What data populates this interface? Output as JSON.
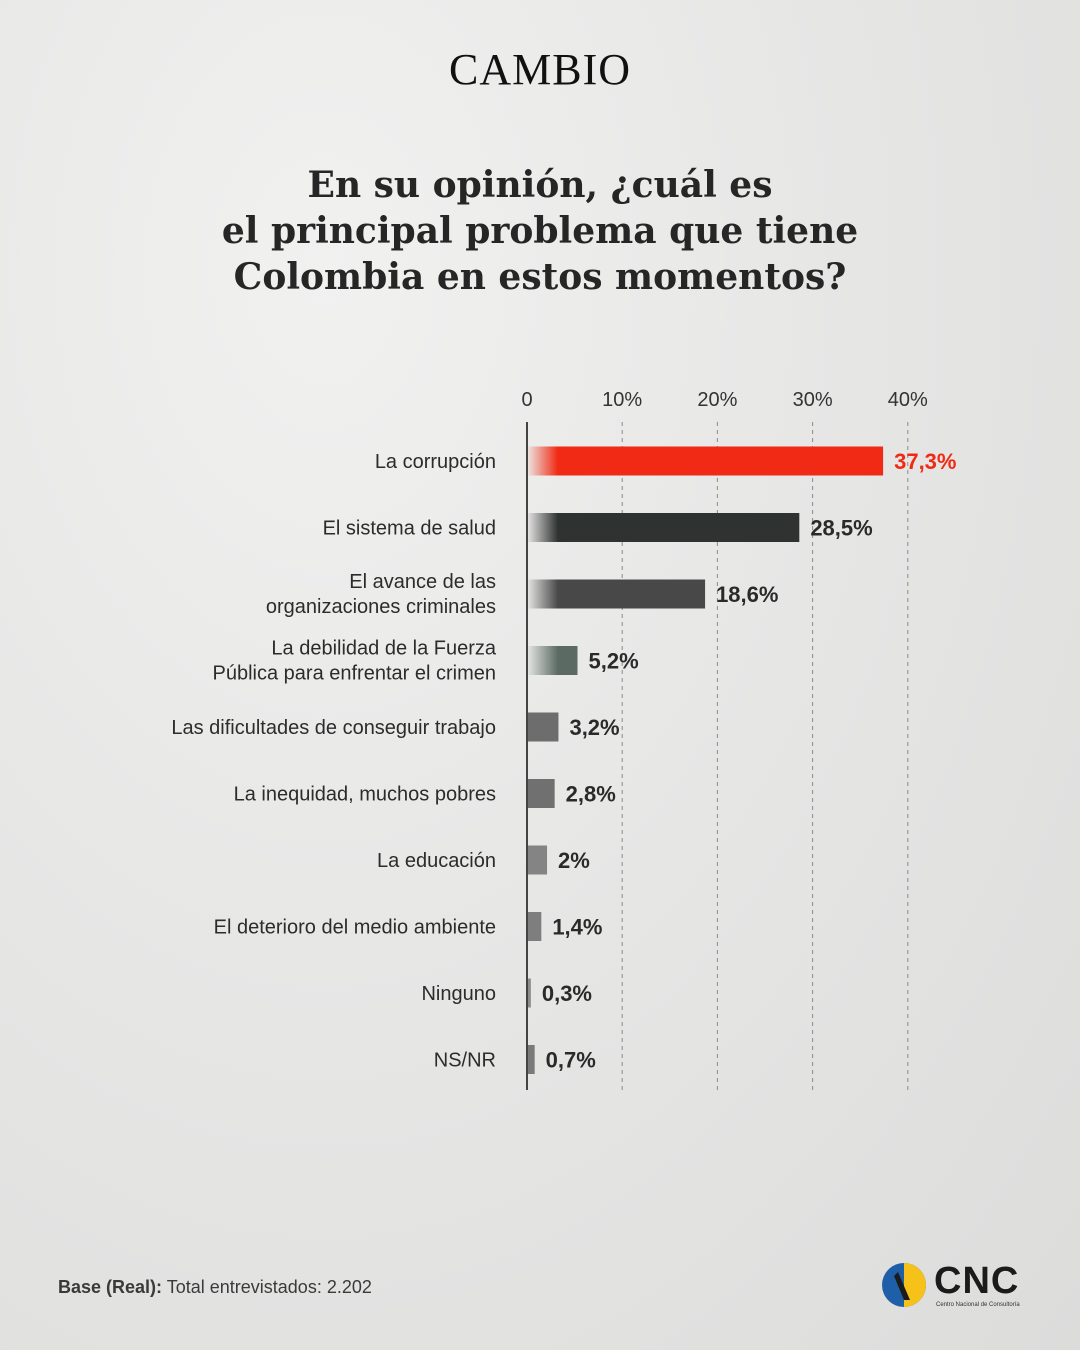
{
  "brand": "CAMBIO",
  "title_lines": [
    "En su opinión, ¿cuál es",
    "el principal problema que tiene",
    "Colombia en estos momentos?"
  ],
  "footer": {
    "label": "Base (Real):",
    "text": "Total entrevistados: 2.202"
  },
  "logo": {
    "name": "CNC",
    "subtitle": "Centro Nacional de Consultoría"
  },
  "colors": {
    "highlight": "#f02a14",
    "dark": "#2e3231",
    "gray": "#4a4a4a",
    "green_gray": "#5b6b63",
    "light_gray": "#7a7a7a",
    "grid": "#8a8a8a"
  },
  "chart_data": {
    "type": "bar",
    "orientation": "horizontal",
    "xlim": [
      0,
      40
    ],
    "ticks": [
      "0",
      "10%",
      "20%",
      "30%",
      "40%"
    ],
    "tick_values": [
      0,
      10,
      20,
      30,
      40
    ],
    "grid": true,
    "categories": [
      "La corrupción",
      "El sistema de salud",
      "El avance de las organizaciones criminales",
      "La debilidad de la Fuerza Pública para enfrentar el crimen",
      "Las dificultades de conseguir trabajo",
      "La inequidad, muchos pobres",
      "La educación",
      "El deterioro del medio ambiente",
      "Ninguno",
      "NS/NR"
    ],
    "category_lines": [
      [
        "La corrupción"
      ],
      [
        "El sistema de salud"
      ],
      [
        "El avance de las",
        "organizaciones criminales"
      ],
      [
        "La debilidad de la Fuerza",
        "Pública para enfrentar el crimen"
      ],
      [
        "Las dificultades de conseguir trabajo"
      ],
      [
        "La inequidad, muchos pobres"
      ],
      [
        "La educación"
      ],
      [
        "El deterioro del medio ambiente"
      ],
      [
        "Ninguno"
      ],
      [
        "NS/NR"
      ]
    ],
    "values": [
      37.3,
      28.5,
      18.6,
      5.2,
      3.2,
      2.8,
      2.0,
      1.4,
      0.3,
      0.7
    ],
    "value_labels": [
      "37,3%",
      "28,5%",
      "18,6%",
      "5,2%",
      "3,2%",
      "2,8%",
      "2%",
      "1,4%",
      "0,3%",
      "0,7%"
    ],
    "bar_colors": [
      "#f02a14",
      "#2e3231",
      "#484848",
      "#5b6b63",
      "#6d6d6d",
      "#707070",
      "#848484",
      "#7e7e7e",
      "#8c8c8c",
      "#7a7a7a"
    ]
  }
}
